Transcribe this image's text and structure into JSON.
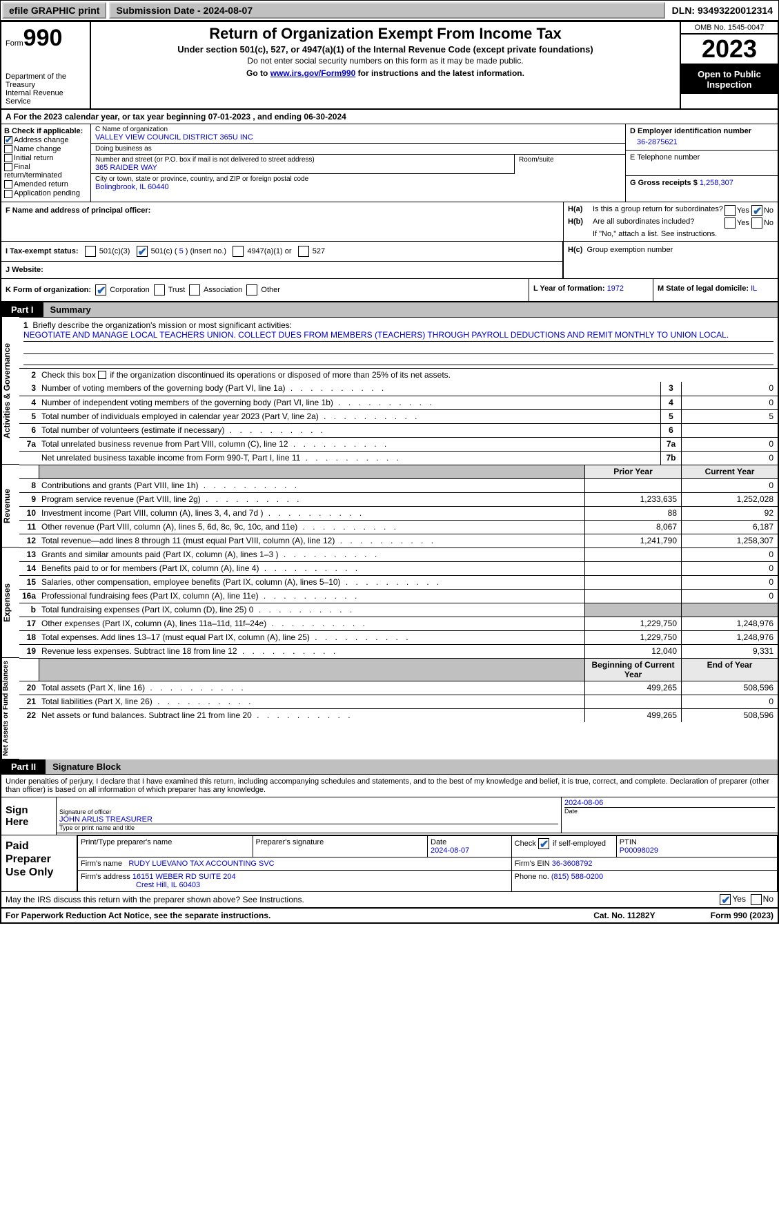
{
  "colors": {
    "accent": "#0000cc",
    "checkbox": "#1a5fb4",
    "grey": "#c0c0c0",
    "black": "#000000"
  },
  "topbar": {
    "efile": "efile GRAPHIC print",
    "submission_label": "Submission Date - ",
    "submission_date": "2024-08-07",
    "dln_label": "DLN: ",
    "dln": "93493220012314"
  },
  "header": {
    "form_word": "Form",
    "form_no": "990",
    "title": "Return of Organization Exempt From Income Tax",
    "sub1": "Under section 501(c), 527, or 4947(a)(1) of the Internal Revenue Code (except private foundations)",
    "sub2": "Do not enter social security numbers on this form as it may be made public.",
    "sub3_pre": "Go to ",
    "sub3_link": "www.irs.gov/Form990",
    "sub3_post": " for instructions and the latest information.",
    "dept": "Department of the Treasury\nInternal Revenue Service",
    "omb": "OMB No. 1545-0047",
    "year": "2023",
    "open": "Open to Public Inspection"
  },
  "period": {
    "prefix": "A  For the 2023 calendar year, or tax year beginning ",
    "begin": "07-01-2023",
    "mid": "   , and ending ",
    "end": "06-30-2024"
  },
  "blockB": {
    "title": "B Check if applicable:",
    "address_change": true,
    "name_change": false,
    "initial_return": false,
    "final_return": false,
    "amended_return": false,
    "application_pending": false,
    "labels": {
      "address_change": "Address change",
      "name_change": "Name change",
      "initial_return": "Initial return",
      "final_return": "Final return/terminated",
      "amended_return": "Amended return",
      "application_pending": "Application pending"
    }
  },
  "blockC": {
    "name_lbl": "C Name of organization",
    "name": "VALLEY VIEW COUNCIL DISTRICT 365U INC",
    "dba_lbl": "Doing business as",
    "dba": "",
    "street_lbl": "Number and street (or P.O. box if mail is not delivered to street address)",
    "street": "365 RAIDER WAY",
    "room_lbl": "Room/suite",
    "room": "",
    "city_lbl": "City or town, state or province, country, and ZIP or foreign postal code",
    "city": "Bolingbrook, IL  60440"
  },
  "blockD": {
    "lbl": "D Employer identification number",
    "val": "36-2875621"
  },
  "blockE": {
    "lbl": "E Telephone number",
    "val": ""
  },
  "blockG": {
    "lbl": "G Gross receipts $ ",
    "val": "1,258,307"
  },
  "blockF": {
    "lbl": "F  Name and address of principal officer:",
    "val": ""
  },
  "blockH": {
    "a_lbl": "H(a)",
    "a_txt": "Is this a group return for subordinates?",
    "a_yes": false,
    "a_no": true,
    "b_lbl": "H(b)",
    "b_txt": "Are all subordinates included?",
    "b_yes": false,
    "b_no": false,
    "b_note": "If \"No,\" attach a list. See instructions.",
    "c_lbl": "H(c)",
    "c_txt": "Group exemption number "
  },
  "blockI": {
    "lbl": "I   Tax-exempt status:",
    "c3": false,
    "c_other": true,
    "c_num": "5",
    "c_insert": "(insert no.)",
    "a4947": false,
    "s527": false
  },
  "blockJ": {
    "lbl": "J   Website:",
    "val": ""
  },
  "blockK": {
    "lbl": "K Form of organization:",
    "corp": true,
    "trust": false,
    "assoc": false,
    "other": false,
    "labels": {
      "corp": "Corporation",
      "trust": "Trust",
      "assoc": "Association",
      "other": "Other"
    }
  },
  "blockL": {
    "lbl": "L Year of formation: ",
    "val": "1972"
  },
  "blockM": {
    "lbl": "M State of legal domicile: ",
    "val": "IL"
  },
  "part1": {
    "tag": "Part I",
    "title": "Summary"
  },
  "summary": {
    "v1": "Activities & Governance",
    "v2": "Revenue",
    "v3": "Expenses",
    "v4": "Net Assets or Fund Balances",
    "line1_lbl": "Briefly describe the organization's mission or most significant activities:",
    "line1_txt": "NEGOTIATE AND MANAGE LOCAL TEACHERS UNION. COLLECT DUES FROM MEMBERS (TEACHERS) THROUGH PAYROLL DEDUCTIONS AND REMIT MONTHLY TO UNION LOCAL.",
    "line2": "Check this box           if the organization discontinued its operations or disposed of more than 25% of its net assets.",
    "lines_ag": [
      {
        "n": "3",
        "d": "Number of voting members of the governing body (Part VI, line 1a)",
        "box": "3",
        "v": "0"
      },
      {
        "n": "4",
        "d": "Number of independent voting members of the governing body (Part VI, line 1b)",
        "box": "4",
        "v": "0"
      },
      {
        "n": "5",
        "d": "Total number of individuals employed in calendar year 2023 (Part V, line 2a)",
        "box": "5",
        "v": "5"
      },
      {
        "n": "6",
        "d": "Total number of volunteers (estimate if necessary)",
        "box": "6",
        "v": ""
      },
      {
        "n": "7a",
        "d": "Total unrelated business revenue from Part VIII, column (C), line 12",
        "box": "7a",
        "v": "0"
      },
      {
        "n": "",
        "d": "Net unrelated business taxable income from Form 990-T, Part I, line 11",
        "box": "7b",
        "v": "0"
      }
    ],
    "hdr_prior": "Prior Year",
    "hdr_current": "Current Year",
    "lines_rev": [
      {
        "n": "8",
        "d": "Contributions and grants (Part VIII, line 1h)",
        "p": "",
        "c": "0"
      },
      {
        "n": "9",
        "d": "Program service revenue (Part VIII, line 2g)",
        "p": "1,233,635",
        "c": "1,252,028"
      },
      {
        "n": "10",
        "d": "Investment income (Part VIII, column (A), lines 3, 4, and 7d )",
        "p": "88",
        "c": "92"
      },
      {
        "n": "11",
        "d": "Other revenue (Part VIII, column (A), lines 5, 6d, 8c, 9c, 10c, and 11e)",
        "p": "8,067",
        "c": "6,187"
      },
      {
        "n": "12",
        "d": "Total revenue—add lines 8 through 11 (must equal Part VIII, column (A), line 12)",
        "p": "1,241,790",
        "c": "1,258,307"
      }
    ],
    "lines_exp": [
      {
        "n": "13",
        "d": "Grants and similar amounts paid (Part IX, column (A), lines 1–3 )",
        "p": "",
        "c": "0"
      },
      {
        "n": "14",
        "d": "Benefits paid to or for members (Part IX, column (A), line 4)",
        "p": "",
        "c": "0"
      },
      {
        "n": "15",
        "d": "Salaries, other compensation, employee benefits (Part IX, column (A), lines 5–10)",
        "p": "",
        "c": "0"
      },
      {
        "n": "16a",
        "d": "Professional fundraising fees (Part IX, column (A), line 11e)",
        "p": "",
        "c": "0"
      },
      {
        "n": "b",
        "d": "Total fundraising expenses (Part IX, column (D), line 25) 0",
        "p": "GREY",
        "c": "GREY"
      },
      {
        "n": "17",
        "d": "Other expenses (Part IX, column (A), lines 11a–11d, 11f–24e)",
        "p": "1,229,750",
        "c": "1,248,976"
      },
      {
        "n": "18",
        "d": "Total expenses. Add lines 13–17 (must equal Part IX, column (A), line 25)",
        "p": "1,229,750",
        "c": "1,248,976"
      },
      {
        "n": "19",
        "d": "Revenue less expenses. Subtract line 18 from line 12",
        "p": "12,040",
        "c": "9,331"
      }
    ],
    "hdr_begin": "Beginning of Current Year",
    "hdr_end": "End of Year",
    "lines_net": [
      {
        "n": "20",
        "d": "Total assets (Part X, line 16)",
        "p": "499,265",
        "c": "508,596"
      },
      {
        "n": "21",
        "d": "Total liabilities (Part X, line 26)",
        "p": "",
        "c": "0"
      },
      {
        "n": "22",
        "d": "Net assets or fund balances. Subtract line 21 from line 20",
        "p": "499,265",
        "c": "508,596"
      }
    ]
  },
  "part2": {
    "tag": "Part II",
    "title": "Signature Block"
  },
  "sig": {
    "intro": "Under penalties of perjury, I declare that I have examined this return, including accompanying schedules and statements, and to the best of my knowledge and belief, it is true, correct, and complete. Declaration of preparer (other than officer) is based on all information of which preparer has any knowledge.",
    "sign_here": "Sign Here",
    "sig_lbl": "Signature of officer",
    "officer": "JOHN ARLIS TREASURER",
    "name_lbl": "Type or print name and title",
    "date": "2024-08-06",
    "date_lbl": "Date"
  },
  "paid": {
    "title": "Paid Preparer Use Only",
    "print_lbl": "Print/Type preparer's name",
    "prep_sig_lbl": "Preparer's signature",
    "date_lbl": "Date",
    "date": "2024-08-07",
    "check_lbl": "Check",
    "check_if": "if self-employed",
    "check": true,
    "ptin_lbl": "PTIN",
    "ptin": "P00098029",
    "firm_name_lbl": "Firm's name   ",
    "firm_name": "RUDY LUEVANO TAX ACCOUNTING SVC",
    "firm_ein_lbl": "Firm's EIN  ",
    "firm_ein": "36-3608792",
    "firm_addr_lbl": "Firm's address ",
    "firm_addr1": "16151 WEBER RD SUITE 204",
    "firm_addr2": "Crest Hill, IL  60403",
    "phone_lbl": "Phone no. ",
    "phone": "(815) 588-0200"
  },
  "discuss": {
    "txt": "May the IRS discuss this return with the preparer shown above? See Instructions.",
    "yes": true,
    "no": false
  },
  "footer": {
    "l": "For Paperwork Reduction Act Notice, see the separate instructions.",
    "m": "Cat. No. 11282Y",
    "r": "Form 990 (2023)"
  }
}
